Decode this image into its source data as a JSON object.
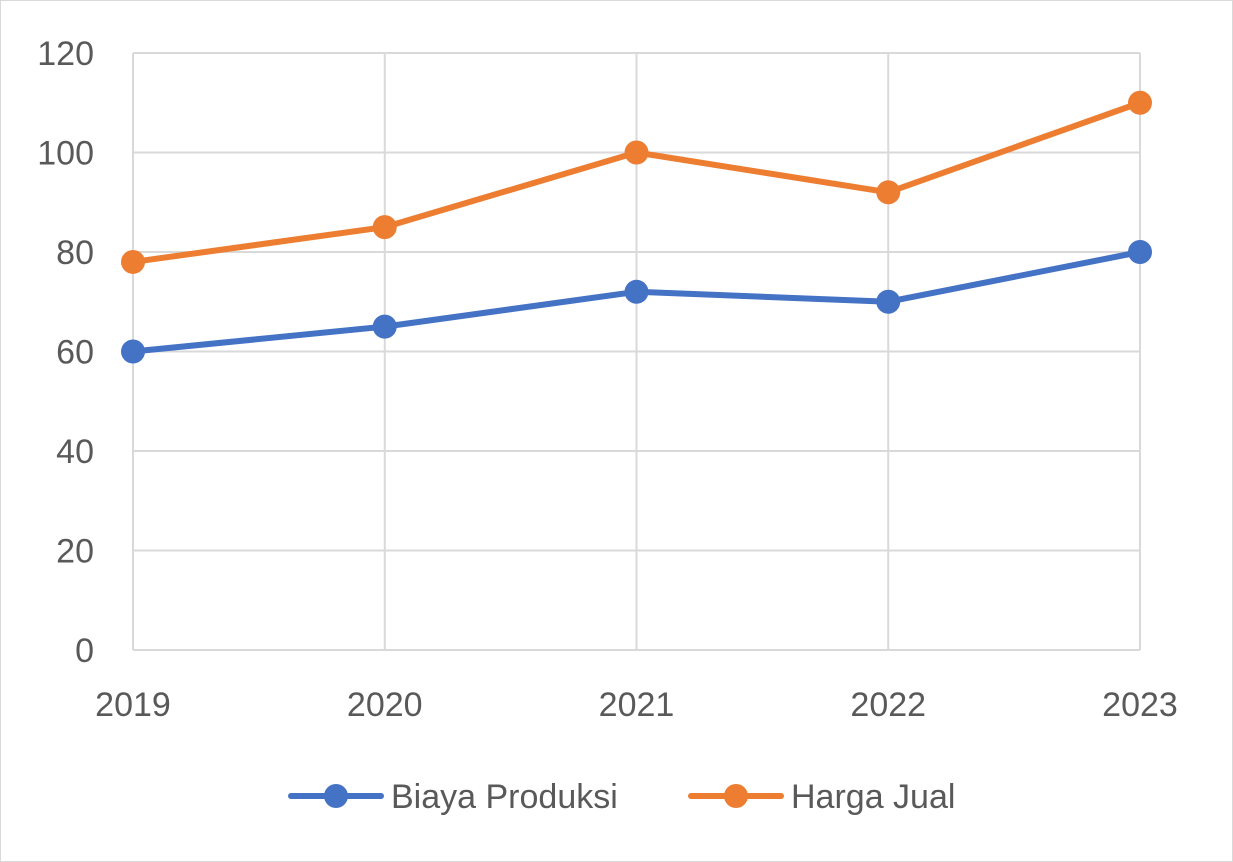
{
  "chart_data": {
    "type": "line",
    "title": "",
    "xlabel": "",
    "ylabel": "",
    "categories": [
      "2019",
      "2020",
      "2021",
      "2022",
      "2023"
    ],
    "ylim": [
      0,
      120
    ],
    "y_ticks": [
      0,
      20,
      40,
      60,
      80,
      100,
      120
    ],
    "grid": true,
    "legend_position": "bottom",
    "series": [
      {
        "name": "Biaya Produksi",
        "color": "#4472C4",
        "values": [
          60,
          65,
          72,
          70,
          80
        ]
      },
      {
        "name": "Harga Jual",
        "color": "#ED7D31",
        "values": [
          78,
          85,
          100,
          92,
          110
        ]
      }
    ]
  }
}
